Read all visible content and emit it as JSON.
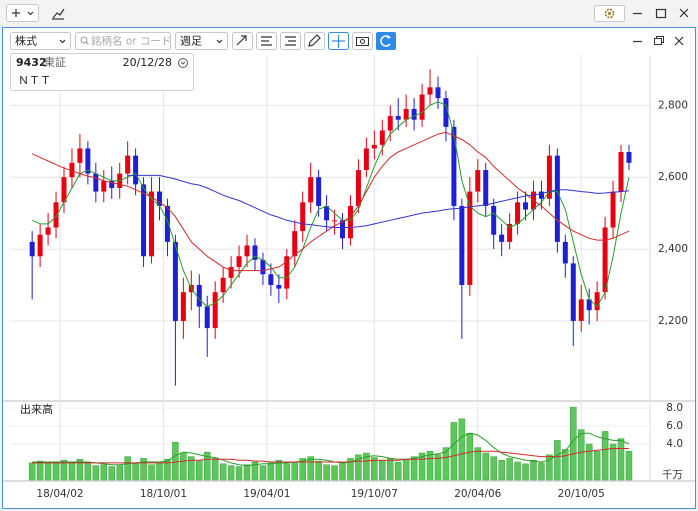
{
  "toolbar": {
    "market": "株式",
    "search_placeholder": "銘柄名 or コード",
    "period": "週足"
  },
  "info": {
    "code": "9432",
    "exchange": "東証",
    "name": "ＮＴＴ"
  },
  "chart_data": {
    "type": "candlestick",
    "x": [
      "18/02/12",
      "18/02/26",
      "18/03/12",
      "18/03/26",
      "18/04/09",
      "18/04/23",
      "18/05/07",
      "18/05/21",
      "18/06/04",
      "18/06/18",
      "18/07/02",
      "18/07/16",
      "18/07/30",
      "18/08/13",
      "18/08/27",
      "18/09/10",
      "18/09/24",
      "18/10/08",
      "18/10/22",
      "18/11/05",
      "18/11/19",
      "18/12/03",
      "18/12/17",
      "18/12/31",
      "19/01/14",
      "19/01/28",
      "19/02/11",
      "19/02/25",
      "19/03/11",
      "19/03/25",
      "19/04/08",
      "19/04/22",
      "19/05/06",
      "19/05/20",
      "19/06/03",
      "19/06/17",
      "19/07/01",
      "19/07/15",
      "19/07/29",
      "19/08/12",
      "19/08/26",
      "19/09/09",
      "19/09/23",
      "19/10/07",
      "19/10/21",
      "19/11/04",
      "19/11/18",
      "19/12/02",
      "19/12/16",
      "19/12/30",
      "20/01/13",
      "20/01/27",
      "20/02/10",
      "20/02/24",
      "20/03/09",
      "20/03/23",
      "20/04/06",
      "20/04/20",
      "20/05/04",
      "20/05/18",
      "20/06/01",
      "20/06/15",
      "20/06/29",
      "20/07/13",
      "20/07/27",
      "20/08/10",
      "20/08/24",
      "20/09/07",
      "20/09/21",
      "20/10/05",
      "20/10/19",
      "20/11/02",
      "20/11/16",
      "20/11/30",
      "20/12/14",
      "20/12/28"
    ],
    "open": [
      2420,
      2380,
      2440,
      2460,
      2530,
      2600,
      2640,
      2680,
      2610,
      2560,
      2590,
      2570,
      2610,
      2660,
      2580,
      2380,
      2560,
      2520,
      2420,
      2200,
      2280,
      2300,
      2240,
      2180,
      2280,
      2320,
      2350,
      2380,
      2410,
      2370,
      2330,
      2300,
      2290,
      2380,
      2450,
      2530,
      2600,
      2520,
      2480,
      2480,
      2430,
      2520,
      2620,
      2680,
      2690,
      2730,
      2770,
      2760,
      2790,
      2760,
      2830,
      2850,
      2820,
      2740,
      2520,
      2300,
      2560,
      2620,
      2520,
      2440,
      2420,
      2470,
      2530,
      2510,
      2560,
      2540,
      2660,
      2420,
      2360,
      2200,
      2260,
      2230,
      2280,
      2460,
      2560,
      2670
    ],
    "high": [
      2450,
      2470,
      2500,
      2560,
      2630,
      2680,
      2720,
      2700,
      2640,
      2620,
      2630,
      2640,
      2700,
      2680,
      2600,
      2600,
      2600,
      2540,
      2440,
      2320,
      2340,
      2330,
      2270,
      2310,
      2350,
      2380,
      2410,
      2440,
      2430,
      2390,
      2360,
      2330,
      2400,
      2480,
      2560,
      2640,
      2620,
      2550,
      2510,
      2500,
      2550,
      2650,
      2710,
      2730,
      2760,
      2800,
      2820,
      2830,
      2820,
      2860,
      2900,
      2880,
      2840,
      2760,
      2540,
      2600,
      2650,
      2640,
      2540,
      2470,
      2500,
      2560,
      2560,
      2590,
      2590,
      2690,
      2680,
      2440,
      2380,
      2300,
      2290,
      2310,
      2490,
      2590,
      2690,
      2690
    ],
    "low": [
      2260,
      2350,
      2410,
      2430,
      2500,
      2570,
      2600,
      2580,
      2530,
      2530,
      2540,
      2540,
      2580,
      2550,
      2350,
      2360,
      2480,
      2380,
      2020,
      2150,
      2230,
      2180,
      2100,
      2150,
      2250,
      2290,
      2320,
      2350,
      2340,
      2300,
      2270,
      2250,
      2260,
      2350,
      2420,
      2500,
      2490,
      2450,
      2440,
      2400,
      2410,
      2500,
      2600,
      2650,
      2660,
      2700,
      2730,
      2740,
      2730,
      2740,
      2800,
      2790,
      2700,
      2480,
      2150,
      2270,
      2530,
      2490,
      2400,
      2380,
      2400,
      2440,
      2480,
      2480,
      2510,
      2520,
      2390,
      2320,
      2130,
      2170,
      2190,
      2200,
      2260,
      2430,
      2530,
      2620
    ],
    "close": [
      2380,
      2440,
      2460,
      2530,
      2600,
      2640,
      2680,
      2610,
      2560,
      2590,
      2570,
      2610,
      2660,
      2580,
      2380,
      2560,
      2520,
      2420,
      2200,
      2280,
      2300,
      2240,
      2180,
      2280,
      2320,
      2350,
      2380,
      2410,
      2370,
      2330,
      2300,
      2290,
      2380,
      2450,
      2530,
      2600,
      2520,
      2480,
      2480,
      2430,
      2520,
      2620,
      2680,
      2690,
      2730,
      2770,
      2760,
      2790,
      2760,
      2830,
      2850,
      2820,
      2740,
      2520,
      2300,
      2560,
      2620,
      2520,
      2440,
      2420,
      2470,
      2530,
      2510,
      2560,
      2540,
      2660,
      2420,
      2360,
      2200,
      2260,
      2230,
      2280,
      2460,
      2560,
      2670,
      2640
    ],
    "candle_colors": {
      "up": "#e60012",
      "down": "#1f1fd6"
    },
    "overlays": [
      {
        "color": "#2a9d2a",
        "values": [
          2480,
          2470,
          2470,
          2490,
          2530,
          2570,
          2610,
          2620,
          2610,
          2600,
          2590,
          2590,
          2600,
          2610,
          2570,
          2540,
          2520,
          2480,
          2410,
          2340,
          2290,
          2260,
          2240,
          2250,
          2270,
          2300,
          2330,
          2360,
          2380,
          2370,
          2350,
          2320,
          2320,
          2350,
          2400,
          2460,
          2510,
          2520,
          2500,
          2480,
          2480,
          2510,
          2570,
          2630,
          2680,
          2720,
          2740,
          2760,
          2770,
          2780,
          2800,
          2810,
          2800,
          2720,
          2590,
          2520,
          2500,
          2490,
          2500,
          2480,
          2460,
          2470,
          2490,
          2510,
          2530,
          2560,
          2560,
          2510,
          2420,
          2330,
          2260,
          2240,
          2280,
          2380,
          2500,
          2600
        ]
      },
      {
        "color": "#d42a2a",
        "values": [
          2665,
          2655,
          2645,
          2635,
          2625,
          2618,
          2610,
          2603,
          2598,
          2590,
          2585,
          2580,
          2575,
          2565,
          2555,
          2545,
          2530,
          2515,
          2490,
          2455,
          2420,
          2400,
          2380,
          2365,
          2350,
          2340,
          2340,
          2340,
          2340,
          2340,
          2345,
          2350,
          2365,
          2385,
          2400,
          2420,
          2435,
          2450,
          2465,
          2475,
          2490,
          2520,
          2560,
          2600,
          2630,
          2655,
          2670,
          2680,
          2690,
          2700,
          2710,
          2720,
          2725,
          2715,
          2705,
          2690,
          2670,
          2655,
          2630,
          2610,
          2590,
          2570,
          2555,
          2535,
          2520,
          2500,
          2480,
          2465,
          2450,
          2440,
          2430,
          2425,
          2425,
          2430,
          2440,
          2450
        ]
      },
      {
        "color": "#3434cc",
        "values": [
          null,
          null,
          null,
          null,
          null,
          null,
          null,
          null,
          null,
          null,
          null,
          null,
          2605,
          2605,
          2605,
          2605,
          2605,
          2600,
          2595,
          2588,
          2582,
          2578,
          2570,
          2560,
          2550,
          2542,
          2535,
          2525,
          2515,
          2505,
          2495,
          2488,
          2480,
          2475,
          2470,
          2468,
          2465,
          2462,
          2460,
          2460,
          2460,
          2462,
          2465,
          2470,
          2475,
          2480,
          2485,
          2490,
          2495,
          2500,
          2503,
          2506,
          2510,
          2512,
          2514,
          2518,
          2520,
          2523,
          2528,
          2533,
          2538,
          2543,
          2548,
          2550,
          2555,
          2560,
          2565,
          2565,
          2563,
          2560,
          2558,
          2555,
          2556,
          2558,
          2560,
          2562
        ]
      }
    ],
    "xlim": [
      "18/01/04",
      "21/02/03"
    ],
    "xticks": [
      "18/04/02",
      "18/10/01",
      "19/04/01",
      "19/10/07",
      "20/04/06",
      "20/10/05"
    ],
    "ylim": [
      1980,
      2940
    ],
    "yticks": [
      {
        "value": 2200,
        "label": "2,200"
      },
      {
        "value": 2400,
        "label": "2,400"
      },
      {
        "value": 2600,
        "label": "2,600"
      },
      {
        "value": 2800,
        "label": "2,800"
      }
    ],
    "grid": true,
    "volume": {
      "label": "出来高",
      "unit": "千万",
      "color": "#5cc85c",
      "values": [
        1.9,
        2.1,
        1.8,
        2.0,
        2.2,
        1.9,
        2.3,
        1.8,
        1.6,
        1.7,
        1.5,
        1.6,
        2.6,
        1.8,
        2.4,
        1.7,
        2.0,
        2.3,
        4.2,
        3.0,
        2.6,
        2.2,
        3.1,
        2.4,
        1.8,
        1.6,
        1.5,
        1.7,
        2.0,
        1.6,
        1.9,
        2.2,
        1.8,
        2.0,
        2.4,
        2.6,
        2.1,
        1.7,
        1.6,
        2.0,
        2.4,
        2.8,
        3.0,
        2.5,
        2.2,
        2.4,
        2.0,
        2.3,
        2.6,
        3.0,
        3.2,
        2.8,
        3.6,
        6.4,
        6.8,
        5.2,
        3.6,
        3.0,
        2.6,
        2.2,
        2.4,
        2.0,
        1.8,
        2.2,
        1.9,
        2.8,
        4.4,
        3.4,
        8.1,
        5.6,
        4.0,
        3.2,
        5.4,
        4.0,
        4.6,
        3.2
      ],
      "overlays": [
        {
          "color": "#2a9d2a",
          "values": [
            2.0,
            2.0,
            2.0,
            2.0,
            2.0,
            2.0,
            2.0,
            2.0,
            1.9,
            1.8,
            1.7,
            1.7,
            1.8,
            1.9,
            2.0,
            2.0,
            2.0,
            2.1,
            2.7,
            3.1,
            3.0,
            2.8,
            2.6,
            2.5,
            2.2,
            1.9,
            1.7,
            1.6,
            1.7,
            1.8,
            1.8,
            1.9,
            1.9,
            2.0,
            2.1,
            2.3,
            2.3,
            2.2,
            2.0,
            1.9,
            2.0,
            2.3,
            2.6,
            2.7,
            2.6,
            2.4,
            2.3,
            2.3,
            2.4,
            2.6,
            2.8,
            2.9,
            3.1,
            4.0,
            4.8,
            5.2,
            5.0,
            4.4,
            3.6,
            3.0,
            2.6,
            2.4,
            2.2,
            2.1,
            2.0,
            2.2,
            2.8,
            3.2,
            4.4,
            5.2,
            5.2,
            4.8,
            4.6,
            4.4,
            4.4,
            4.0
          ]
        },
        {
          "color": "#d42a2a",
          "values": [
            1.9,
            1.9,
            1.9,
            1.9,
            1.9,
            1.9,
            1.9,
            1.9,
            1.9,
            1.9,
            1.9,
            1.9,
            1.9,
            1.9,
            1.9,
            1.9,
            1.9,
            1.9,
            2.0,
            2.1,
            2.2,
            2.2,
            2.3,
            2.3,
            2.3,
            2.3,
            2.2,
            2.2,
            2.1,
            2.1,
            2.0,
            2.0,
            2.0,
            2.0,
            2.0,
            2.0,
            2.0,
            2.0,
            2.0,
            2.0,
            2.0,
            2.1,
            2.1,
            2.2,
            2.2,
            2.2,
            2.2,
            2.3,
            2.3,
            2.3,
            2.4,
            2.4,
            2.5,
            2.7,
            2.9,
            3.1,
            3.2,
            3.2,
            3.2,
            3.1,
            3.0,
            2.9,
            2.8,
            2.7,
            2.6,
            2.6,
            2.6,
            2.7,
            2.9,
            3.1,
            3.2,
            3.3,
            3.4,
            3.5,
            3.5,
            3.5
          ]
        }
      ],
      "ylim": [
        0,
        8.67
      ],
      "yticks": [
        {
          "value": 4,
          "label": "4.0"
        },
        {
          "value": 6,
          "label": "6.0"
        },
        {
          "value": 8,
          "label": "8.0"
        }
      ]
    }
  }
}
